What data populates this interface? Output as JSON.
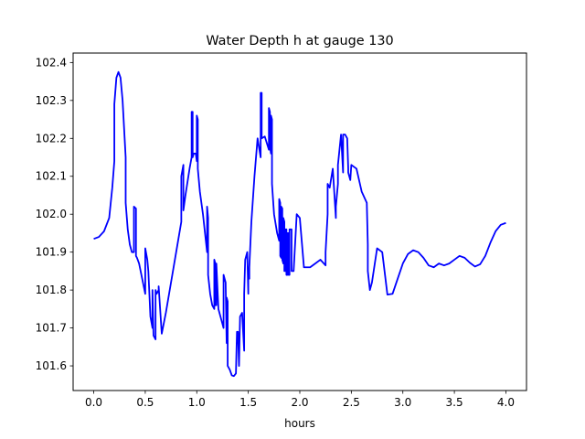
{
  "chart_data": {
    "type": "line",
    "title": "Water Depth h at gauge 130",
    "xlabel": "hours",
    "ylabel": "",
    "xlim": [
      -0.2,
      4.2
    ],
    "ylim": [
      101.535,
      102.425
    ],
    "xticks": [
      0.0,
      0.5,
      1.0,
      1.5,
      2.0,
      2.5,
      3.0,
      3.5,
      4.0
    ],
    "xtick_labels": [
      "0.0",
      "0.5",
      "1.0",
      "1.5",
      "2.0",
      "2.5",
      "3.0",
      "3.5",
      "4.0"
    ],
    "yticks": [
      101.6,
      101.7,
      101.8,
      101.9,
      102.0,
      102.1,
      102.2,
      102.3,
      102.4
    ],
    "ytick_labels": [
      "101.6",
      "101.7",
      "101.8",
      "101.9",
      "102.0",
      "102.1",
      "102.2",
      "102.3",
      "102.4"
    ],
    "grid": false,
    "series": [
      {
        "color": "#0000ff",
        "x": [
          0.0,
          0.05,
          0.1,
          0.15,
          0.18,
          0.2,
          0.2,
          0.22,
          0.24,
          0.26,
          0.28,
          0.3,
          0.31,
          0.31,
          0.33,
          0.35,
          0.37,
          0.39,
          0.39,
          0.41,
          0.41,
          0.42,
          0.44,
          0.47,
          0.5,
          0.5,
          0.52,
          0.53,
          0.55,
          0.57,
          0.57,
          0.58,
          0.6,
          0.6,
          0.61,
          0.63,
          0.63,
          0.66,
          0.7,
          0.75,
          0.8,
          0.85,
          0.85,
          0.87,
          0.87,
          0.89,
          0.93,
          0.95,
          0.95,
          0.96,
          0.96,
          0.97,
          0.99,
          1.0,
          1.0,
          1.01,
          1.01,
          1.03,
          1.06,
          1.08,
          1.1,
          1.1,
          1.11,
          1.11,
          1.13,
          1.15,
          1.17,
          1.17,
          1.18,
          1.18,
          1.19,
          1.19,
          1.21,
          1.24,
          1.26,
          1.26,
          1.28,
          1.29,
          1.29,
          1.3,
          1.3,
          1.32,
          1.34,
          1.36,
          1.38,
          1.39,
          1.4,
          1.41,
          1.41,
          1.42,
          1.44,
          1.46,
          1.46,
          1.47,
          1.49,
          1.5,
          1.5,
          1.51,
          1.51,
          1.53,
          1.56,
          1.59,
          1.62,
          1.62,
          1.63,
          1.63,
          1.66,
          1.7,
          1.7,
          1.71,
          1.71,
          1.72,
          1.72,
          1.73,
          1.73,
          1.75,
          1.78,
          1.8,
          1.8,
          1.81,
          1.81,
          1.82,
          1.82,
          1.83,
          1.83,
          1.84,
          1.84,
          1.85,
          1.85,
          1.86,
          1.86,
          1.87,
          1.87,
          1.88,
          1.88,
          1.89,
          1.89,
          1.9,
          1.9,
          1.92,
          1.92,
          1.94,
          1.97,
          2.0,
          2.04,
          2.1,
          2.15,
          2.2,
          2.25,
          2.25,
          2.27,
          2.27,
          2.29,
          2.32,
          2.35,
          2.35,
          2.37,
          2.37,
          2.4,
          2.4,
          2.42,
          2.42,
          2.44,
          2.46,
          2.47,
          2.47,
          2.49,
          2.5,
          2.55,
          2.6,
          2.65,
          2.66,
          2.66,
          2.68,
          2.7,
          2.75,
          2.8,
          2.85,
          2.9,
          2.95,
          3.0,
          3.05,
          3.1,
          3.15,
          3.2,
          3.25,
          3.3,
          3.35,
          3.4,
          3.45,
          3.5,
          3.55,
          3.6,
          3.65,
          3.7,
          3.75,
          3.8,
          3.85,
          3.9,
          3.95,
          4.0
        ],
        "y": [
          101.935,
          101.94,
          101.955,
          101.99,
          102.07,
          102.14,
          102.29,
          102.36,
          102.375,
          102.36,
          102.3,
          102.2,
          102.15,
          102.03,
          101.96,
          101.92,
          101.9,
          101.9,
          102.02,
          102.015,
          101.89,
          101.885,
          101.87,
          101.83,
          101.79,
          101.91,
          101.88,
          101.85,
          101.73,
          101.7,
          101.8,
          101.68,
          101.67,
          101.8,
          101.79,
          101.8,
          101.81,
          101.685,
          101.74,
          101.82,
          101.9,
          101.98,
          102.1,
          102.13,
          102.01,
          102.05,
          102.12,
          102.15,
          102.27,
          102.27,
          102.15,
          102.16,
          102.16,
          102.14,
          102.26,
          102.25,
          102.12,
          102.06,
          102.0,
          101.95,
          101.9,
          102.02,
          101.99,
          101.84,
          101.79,
          101.76,
          101.75,
          101.88,
          101.87,
          101.76,
          101.76,
          101.87,
          101.75,
          101.72,
          101.7,
          101.84,
          101.82,
          101.66,
          101.78,
          101.77,
          101.6,
          101.59,
          101.575,
          101.573,
          101.58,
          101.69,
          101.69,
          101.6,
          101.6,
          101.73,
          101.74,
          101.64,
          101.79,
          101.88,
          101.9,
          101.79,
          101.83,
          101.83,
          101.86,
          101.98,
          102.1,
          102.2,
          102.15,
          102.32,
          102.32,
          102.2,
          102.205,
          102.17,
          102.28,
          102.27,
          102.18,
          102.16,
          102.26,
          102.25,
          102.08,
          102.0,
          101.95,
          101.93,
          102.04,
          102.03,
          101.89,
          101.885,
          102.02,
          102.015,
          101.88,
          101.87,
          101.99,
          101.98,
          101.85,
          101.85,
          101.96,
          101.96,
          101.84,
          101.84,
          101.95,
          101.95,
          101.84,
          101.84,
          101.96,
          101.96,
          101.85,
          101.85,
          102.0,
          101.99,
          101.86,
          101.86,
          101.87,
          101.88,
          101.865,
          101.9,
          102.0,
          102.08,
          102.07,
          102.12,
          101.99,
          102.02,
          102.08,
          102.13,
          102.21,
          102.21,
          102.11,
          102.21,
          102.21,
          102.2,
          102.12,
          102.11,
          102.09,
          102.13,
          102.12,
          102.06,
          102.03,
          101.92,
          101.85,
          101.8,
          101.82,
          101.91,
          101.9,
          101.788,
          101.79,
          101.83,
          101.87,
          101.895,
          101.905,
          101.9,
          101.885,
          101.865,
          101.86,
          101.87,
          101.865,
          101.87,
          101.88,
          101.89,
          101.885,
          101.872,
          101.862,
          101.868,
          101.89,
          101.925,
          101.955,
          101.972,
          101.977
        ]
      }
    ]
  }
}
